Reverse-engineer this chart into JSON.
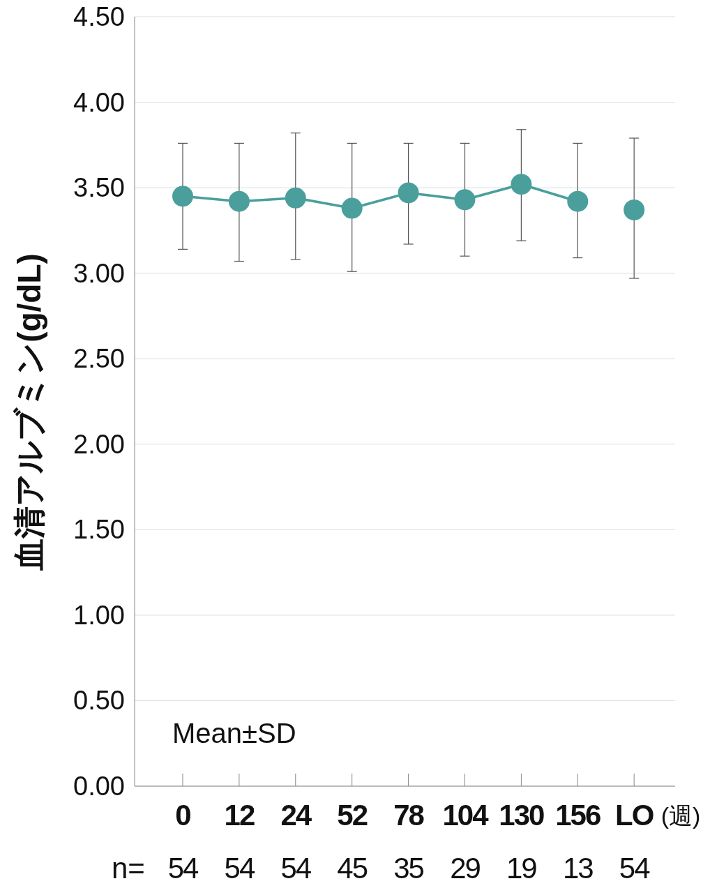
{
  "chart_data": {
    "type": "line",
    "ylabel": "血清アルブミン(g/dL)",
    "xlabel": "(週)",
    "categories": [
      "0",
      "12",
      "24",
      "52",
      "78",
      "104",
      "130",
      "156",
      "LO"
    ],
    "series": [
      {
        "type": "line",
        "color": "#4a9f9c",
        "values": [
          3.45,
          3.42,
          3.44,
          3.38,
          3.47,
          3.43,
          3.52,
          3.42,
          null
        ],
        "errors": [
          [
            3.14,
            3.76
          ],
          [
            3.07,
            3.76
          ],
          [
            3.08,
            3.82
          ],
          [
            3.01,
            3.76
          ],
          [
            3.17,
            3.76
          ],
          [
            3.1,
            3.76
          ],
          [
            3.19,
            3.84
          ],
          [
            3.09,
            3.76
          ],
          null
        ]
      },
      {
        "type": "scatter",
        "color": "#4a9f9c",
        "values": [
          null,
          null,
          null,
          null,
          null,
          null,
          null,
          null,
          3.37
        ],
        "errors": [
          null,
          null,
          null,
          null,
          null,
          null,
          null,
          null,
          [
            2.97,
            3.79
          ]
        ]
      }
    ],
    "ylim": [
      0,
      4.5
    ],
    "yticks": [
      {
        "value": 0,
        "label": "0.00"
      },
      {
        "value": 0.5,
        "label": "0.50"
      },
      {
        "value": 1,
        "label": "1.00"
      },
      {
        "value": 1.5,
        "label": "1.50"
      },
      {
        "value": 2,
        "label": "2.00"
      },
      {
        "value": 2.5,
        "label": "2.50"
      },
      {
        "value": 3,
        "label": "3.00"
      },
      {
        "value": 3.5,
        "label": "3.50"
      },
      {
        "value": 4,
        "label": "4.00"
      },
      {
        "value": 4.5,
        "label": "4.50"
      }
    ],
    "grid": "y",
    "marker": "circle",
    "annotations": [
      "Mean±SD",
      "n=",
      "54",
      "54",
      "54",
      "45",
      "35",
      "29",
      "19",
      "13",
      "54"
    ]
  }
}
